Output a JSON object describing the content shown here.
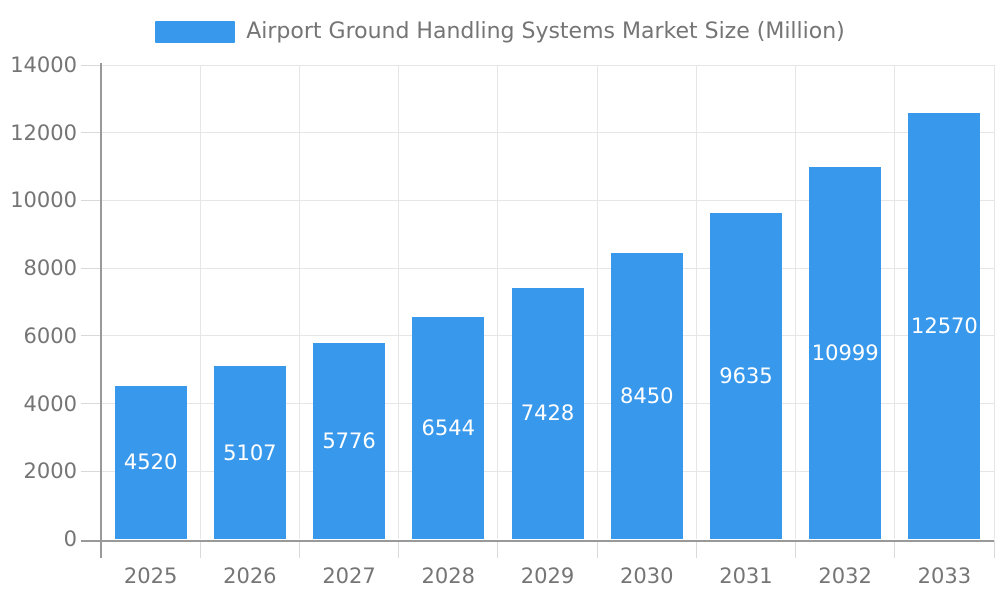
{
  "legend": {
    "label": "Airport Ground Handling Systems Market Size (Million)",
    "swatch_icon": "legend-swatch-square"
  },
  "colors": {
    "bar": "#3898ec",
    "axis": "#999999",
    "grid": "#e6e6e6",
    "tick": "#d9d9d9",
    "text": "#757575",
    "value_label": "#ffffff",
    "background": "#ffffff"
  },
  "chart_data": {
    "type": "bar",
    "title": "Airport Ground Handling Systems Market Size (Million)",
    "series": [
      {
        "name": "Airport Ground Handling Systems Market Size (Million)",
        "values": [
          4520,
          5107,
          5776,
          6544,
          7428,
          8450,
          9635,
          10999,
          12570
        ]
      }
    ],
    "categories": [
      "2025",
      "2026",
      "2027",
      "2028",
      "2029",
      "2030",
      "2031",
      "2032",
      "2033"
    ],
    "value_labels": [
      "4520",
      "5107",
      "5776",
      "6544",
      "7428",
      "8450",
      "9635",
      "10999",
      "12570"
    ],
    "xlabel": "",
    "ylabel": "",
    "ylim": [
      0,
      14000
    ],
    "ytick_step": 2000,
    "yticks": [
      "0",
      "2000",
      "4000",
      "6000",
      "8000",
      "10000",
      "12000",
      "14000"
    ],
    "grid": true,
    "legend_position": "top-center",
    "value_label_position": "inside-center"
  }
}
